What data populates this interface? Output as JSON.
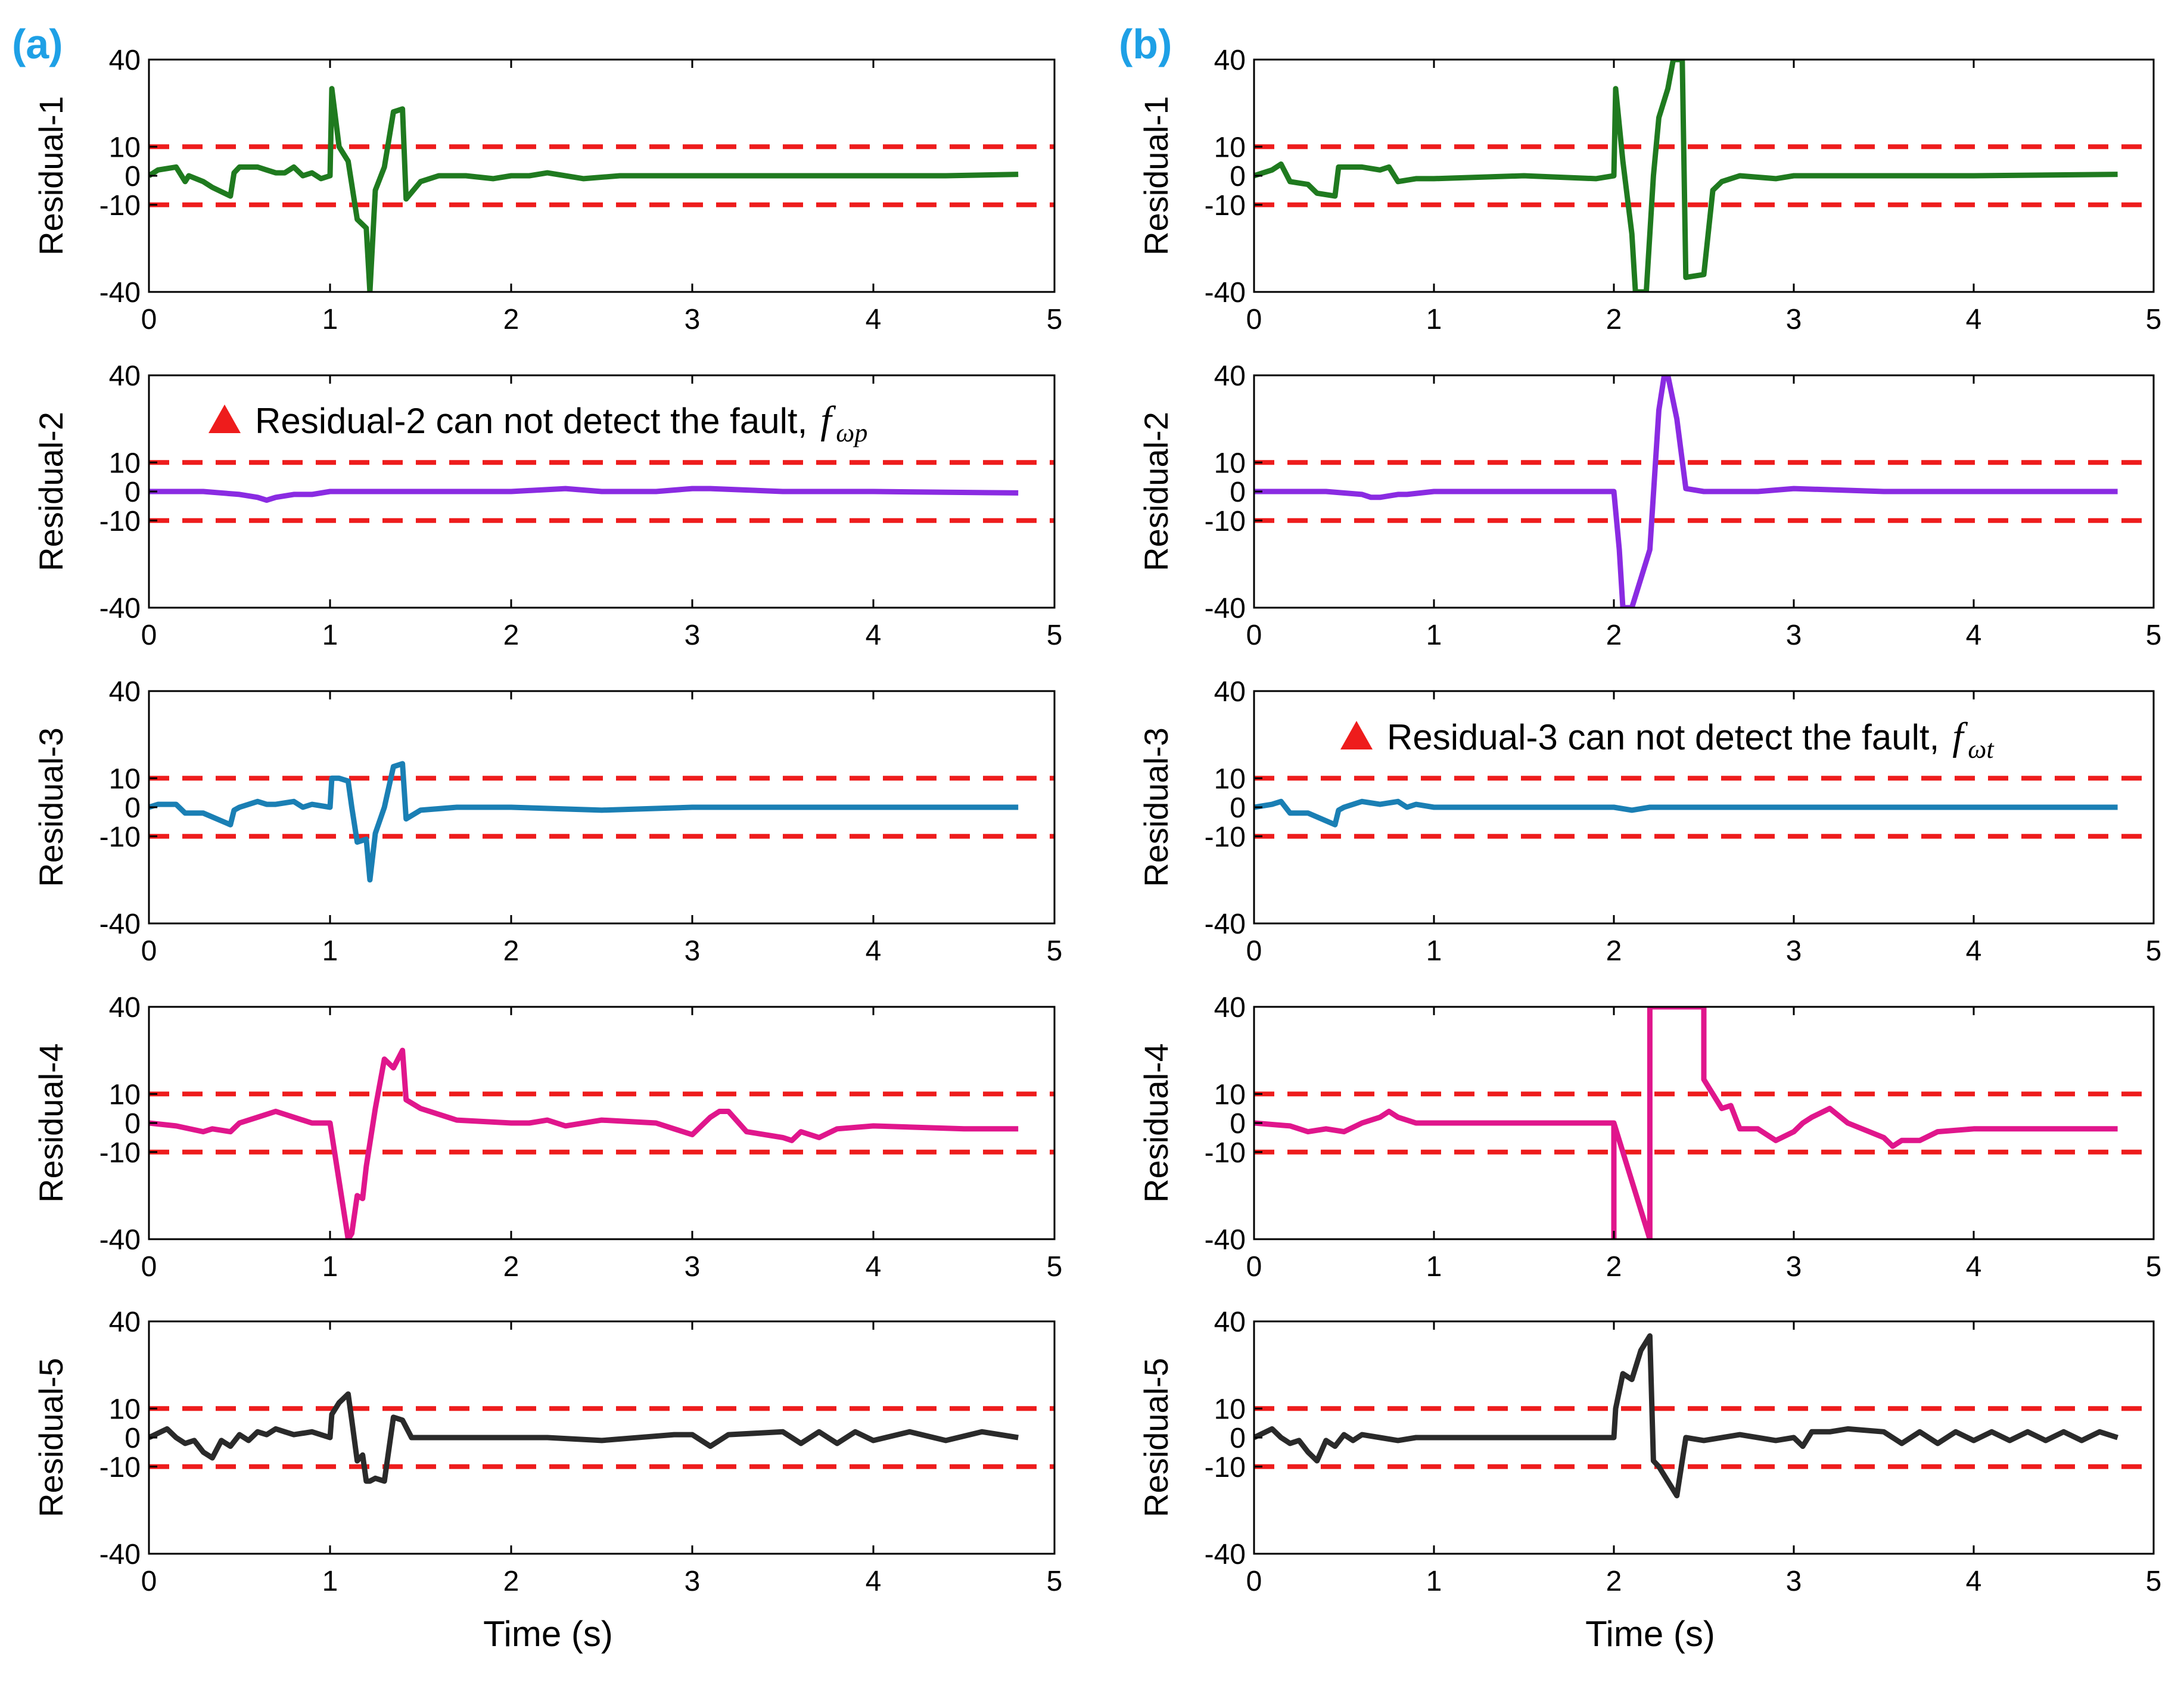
{
  "panels": {
    "a": {
      "label": "(a)"
    },
    "b": {
      "label": "(b)"
    }
  },
  "annotations": {
    "a_residual2": {
      "text": "Residual-2 can not detect the fault,",
      "math": "f",
      "sub": "ωp",
      "marker": "triangle-up-icon"
    },
    "b_residual3": {
      "text": "Residual-3 can not detect the fault,",
      "math": "f",
      "sub": "ωt",
      "marker": "triangle-up-icon"
    }
  },
  "colors": {
    "threshold": "#ee1c1c",
    "r1": "#1f7a1f",
    "r2": "#8a2be2",
    "r3": "#1a7fb4",
    "r4": "#e0168c",
    "r5": "#2a2a2a",
    "panel_label": "#1ea0e6"
  },
  "chart_data": [
    {
      "id": "a1",
      "panel": "a",
      "type": "line",
      "ylabel": "Residual-1",
      "xlabel": "",
      "xlim": [
        0,
        5
      ],
      "ylim": [
        -40,
        40
      ],
      "xticks": [
        "0",
        "1",
        "2",
        "3",
        "4",
        "5"
      ],
      "yticks": [
        "-40",
        "-10",
        "0",
        "10",
        "40"
      ],
      "thresholds": [
        10,
        -10
      ],
      "color": "r1",
      "x": [
        0,
        0.05,
        0.15,
        0.2,
        0.22,
        0.3,
        0.35,
        0.45,
        0.47,
        0.5,
        0.6,
        0.65,
        0.7,
        0.75,
        0.8,
        0.85,
        0.9,
        0.95,
        1.0,
        1.01,
        1.05,
        1.1,
        1.15,
        1.2,
        1.22,
        1.25,
        1.3,
        1.35,
        1.4,
        1.42,
        1.5,
        1.6,
        1.75,
        1.9,
        2.0,
        2.05,
        2.1,
        2.2,
        2.4,
        2.6,
        2.8,
        3.0,
        3.3,
        3.6,
        4.0,
        4.4,
        4.8
      ],
      "y": [
        0,
        2,
        3,
        -2,
        0,
        -2,
        -4,
        -7,
        1,
        3,
        3,
        2,
        1,
        1,
        3,
        0,
        1,
        -1,
        0,
        30,
        10,
        5,
        -15,
        -18,
        -40,
        -5,
        3,
        22,
        23,
        -8,
        -2,
        0,
        0,
        -1,
        0,
        0,
        0,
        1,
        -1,
        0,
        0,
        0,
        0,
        0,
        0,
        0,
        0.5
      ]
    },
    {
      "id": "a2",
      "panel": "a",
      "type": "line",
      "ylabel": "Residual-2",
      "xlabel": "",
      "xlim": [
        0,
        5
      ],
      "ylim": [
        -40,
        40
      ],
      "xticks": [
        "0",
        "1",
        "2",
        "3",
        "4",
        "5"
      ],
      "yticks": [
        "-40",
        "-10",
        "0",
        "10",
        "40"
      ],
      "thresholds": [
        10,
        -10
      ],
      "color": "r2",
      "x": [
        0,
        0.3,
        0.5,
        0.6,
        0.65,
        0.7,
        0.8,
        0.9,
        1.0,
        1.2,
        1.5,
        2.0,
        2.3,
        2.5,
        2.8,
        3.0,
        3.1,
        3.5,
        4.0,
        4.8
      ],
      "y": [
        0,
        0,
        -1,
        -2,
        -3,
        -2,
        -1,
        -1,
        0,
        0,
        0,
        0,
        1,
        0,
        0,
        1,
        1,
        0,
        0,
        -0.5
      ]
    },
    {
      "id": "a3",
      "panel": "a",
      "type": "line",
      "ylabel": "Residual-3",
      "xlabel": "",
      "xlim": [
        0,
        5
      ],
      "ylim": [
        -40,
        40
      ],
      "xticks": [
        "0",
        "1",
        "2",
        "3",
        "4",
        "5"
      ],
      "yticks": [
        "-40",
        "-10",
        "0",
        "10",
        "40"
      ],
      "thresholds": [
        10,
        -10
      ],
      "color": "r3",
      "x": [
        0,
        0.05,
        0.15,
        0.2,
        0.3,
        0.45,
        0.47,
        0.5,
        0.6,
        0.65,
        0.7,
        0.8,
        0.85,
        0.9,
        1.0,
        1.01,
        1.05,
        1.1,
        1.12,
        1.15,
        1.2,
        1.22,
        1.25,
        1.3,
        1.35,
        1.4,
        1.42,
        1.5,
        1.7,
        2.0,
        2.5,
        3.0,
        3.5,
        4.0,
        4.5,
        4.8
      ],
      "y": [
        0,
        1,
        1,
        -2,
        -2,
        -6,
        -1,
        0,
        2,
        1,
        1,
        2,
        0,
        1,
        0,
        10,
        10,
        9,
        0,
        -12,
        -11,
        -25,
        -9,
        0,
        14,
        15,
        -4,
        -1,
        0,
        0,
        -1,
        0,
        0,
        0,
        0,
        0
      ]
    },
    {
      "id": "a4",
      "panel": "a",
      "type": "line",
      "ylabel": "Residual-4",
      "xlabel": "",
      "xlim": [
        0,
        5
      ],
      "ylim": [
        -40,
        40
      ],
      "xticks": [
        "0",
        "1",
        "2",
        "3",
        "4",
        "5"
      ],
      "yticks": [
        "-40",
        "-10",
        "0",
        "10",
        "40"
      ],
      "thresholds": [
        10,
        -10
      ],
      "color": "r4",
      "x": [
        0,
        0.15,
        0.3,
        0.35,
        0.45,
        0.5,
        0.6,
        0.7,
        0.75,
        0.8,
        0.9,
        1.0,
        1.05,
        1.1,
        1.12,
        1.15,
        1.18,
        1.2,
        1.25,
        1.3,
        1.35,
        1.4,
        1.42,
        1.5,
        1.7,
        2.0,
        2.1,
        2.2,
        2.3,
        2.5,
        2.8,
        2.9,
        3.0,
        3.1,
        3.15,
        3.2,
        3.3,
        3.5,
        3.55,
        3.6,
        3.7,
        3.8,
        4.0,
        4.5,
        4.8
      ],
      "y": [
        0,
        -1,
        -3,
        -2,
        -3,
        0,
        2,
        4,
        3,
        2,
        0,
        0,
        -20,
        -40,
        -38,
        -25,
        -26,
        -15,
        5,
        22,
        19,
        25,
        8,
        5,
        1,
        0,
        0,
        1,
        -1,
        1,
        0,
        -2,
        -4,
        2,
        4,
        4,
        -3,
        -5,
        -6,
        -3,
        -5,
        -2,
        -1,
        -2,
        -2
      ]
    },
    {
      "id": "a5",
      "panel": "a",
      "type": "line",
      "ylabel": "Residual-5",
      "xlabel": "Time (s)",
      "xlim": [
        0,
        5
      ],
      "ylim": [
        -40,
        40
      ],
      "xticks": [
        "0",
        "1",
        "2",
        "3",
        "4",
        "5"
      ],
      "yticks": [
        "-40",
        "-10",
        "0",
        "10",
        "40"
      ],
      "thresholds": [
        10,
        -10
      ],
      "color": "r5",
      "x": [
        0,
        0.1,
        0.15,
        0.2,
        0.25,
        0.3,
        0.35,
        0.4,
        0.45,
        0.5,
        0.55,
        0.6,
        0.65,
        0.7,
        0.75,
        0.8,
        0.9,
        1.0,
        1.01,
        1.05,
        1.1,
        1.12,
        1.15,
        1.18,
        1.2,
        1.22,
        1.25,
        1.3,
        1.35,
        1.4,
        1.45,
        1.5,
        1.7,
        2.0,
        2.2,
        2.5,
        2.9,
        3.0,
        3.1,
        3.2,
        3.5,
        3.6,
        3.7,
        3.8,
        3.9,
        4.0,
        4.2,
        4.4,
        4.6,
        4.8
      ],
      "y": [
        0,
        3,
        0,
        -2,
        -1,
        -5,
        -7,
        -1,
        -3,
        1,
        -1,
        2,
        1,
        3,
        2,
        1,
        2,
        0,
        8,
        12,
        15,
        6,
        -8,
        -6,
        -15,
        -15,
        -14,
        -15,
        7,
        6,
        0,
        0,
        0,
        0,
        0,
        -1,
        1,
        1,
        -3,
        1,
        2,
        -2,
        2,
        -2,
        2,
        -1,
        2,
        -1,
        2,
        0
      ]
    },
    {
      "id": "b1",
      "panel": "b",
      "type": "line",
      "ylabel": "Residual-1",
      "xlabel": "",
      "xlim": [
        0,
        5
      ],
      "ylim": [
        -40,
        40
      ],
      "xticks": [
        "0",
        "1",
        "2",
        "3",
        "4",
        "5"
      ],
      "yticks": [
        "-40",
        "-10",
        "0",
        "10",
        "40"
      ],
      "thresholds": [
        10,
        -10
      ],
      "color": "r1",
      "x": [
        0,
        0.1,
        0.15,
        0.2,
        0.3,
        0.35,
        0.45,
        0.47,
        0.6,
        0.7,
        0.75,
        0.8,
        0.9,
        1.0,
        1.5,
        1.9,
        2.0,
        2.01,
        2.05,
        2.1,
        2.12,
        2.18,
        2.2,
        2.22,
        2.25,
        2.3,
        2.33,
        2.38,
        2.4,
        2.5,
        2.55,
        2.6,
        2.7,
        2.9,
        3.0,
        3.5,
        4.0,
        4.8
      ],
      "y": [
        0,
        2,
        4,
        -2,
        -3,
        -6,
        -7,
        3,
        3,
        2,
        3,
        -2,
        -1,
        -1,
        0,
        -1,
        0,
        30,
        5,
        -20,
        -40,
        -40,
        -20,
        0,
        20,
        30,
        40,
        40,
        -35,
        -34,
        -5,
        -2,
        0,
        -1,
        0,
        0,
        0,
        0.5
      ]
    },
    {
      "id": "b2",
      "panel": "b",
      "type": "line",
      "ylabel": "Residual-2",
      "xlabel": "",
      "xlim": [
        0,
        5
      ],
      "ylim": [
        -40,
        40
      ],
      "xticks": [
        "0",
        "1",
        "2",
        "3",
        "4",
        "5"
      ],
      "yticks": [
        "-40",
        "-10",
        "0",
        "10",
        "40"
      ],
      "thresholds": [
        10,
        -10
      ],
      "color": "r2",
      "x": [
        0,
        0.4,
        0.6,
        0.65,
        0.7,
        0.8,
        0.85,
        1.0,
        1.5,
        2.0,
        2.0,
        2.03,
        2.05,
        2.1,
        2.15,
        2.2,
        2.25,
        2.28,
        2.3,
        2.35,
        2.4,
        2.5,
        2.8,
        3.0,
        3.5,
        4.0,
        4.8
      ],
      "y": [
        0,
        0,
        -1,
        -2,
        -2,
        -1,
        -1,
        0,
        0,
        0,
        0,
        -20,
        -40,
        -40,
        -30,
        -20,
        28,
        40,
        40,
        25,
        1,
        0,
        0,
        1,
        0,
        0,
        0
      ]
    },
    {
      "id": "b3",
      "panel": "b",
      "type": "line",
      "ylabel": "Residual-3",
      "xlabel": "",
      "xlim": [
        0,
        5
      ],
      "ylim": [
        -40,
        40
      ],
      "xticks": [
        "0",
        "1",
        "2",
        "3",
        "4",
        "5"
      ],
      "yticks": [
        "-40",
        "-10",
        "0",
        "10",
        "40"
      ],
      "thresholds": [
        10,
        -10
      ],
      "color": "r3",
      "x": [
        0,
        0.1,
        0.15,
        0.2,
        0.3,
        0.45,
        0.47,
        0.5,
        0.6,
        0.7,
        0.8,
        0.85,
        0.9,
        1.0,
        1.5,
        2.0,
        2.1,
        2.2,
        2.5,
        2.8,
        3.0,
        3.5,
        4.0,
        4.5,
        4.8
      ],
      "y": [
        0,
        1,
        2,
        -2,
        -2,
        -6,
        -1,
        0,
        2,
        1,
        2,
        0,
        1,
        0,
        0,
        0,
        -1,
        0,
        0,
        0,
        0,
        0,
        0,
        0,
        0
      ]
    },
    {
      "id": "b4",
      "panel": "b",
      "type": "line",
      "ylabel": "Residual-4",
      "xlabel": "",
      "xlim": [
        0,
        5
      ],
      "ylim": [
        -40,
        40
      ],
      "xticks": [
        "0",
        "1",
        "2",
        "3",
        "4",
        "5"
      ],
      "yticks": [
        "-40",
        "-10",
        "0",
        "10",
        "40"
      ],
      "thresholds": [
        10,
        -10
      ],
      "color": "r4",
      "x": [
        0,
        0.2,
        0.3,
        0.4,
        0.5,
        0.6,
        0.7,
        0.75,
        0.8,
        0.9,
        1.0,
        1.5,
        2.0,
        2.0,
        2.0,
        2.2,
        2.2,
        2.5,
        2.5,
        2.55,
        2.6,
        2.65,
        2.7,
        2.8,
        2.9,
        3.0,
        3.05,
        3.1,
        3.2,
        3.3,
        3.5,
        3.55,
        3.6,
        3.7,
        3.8,
        4.0,
        4.5,
        4.8
      ],
      "y": [
        0,
        -1,
        -3,
        -2,
        -3,
        0,
        2,
        4,
        2,
        0,
        0,
        0,
        0,
        -40,
        0,
        -40,
        40,
        40,
        15,
        10,
        5,
        6,
        -2,
        -2,
        -6,
        -3,
        0,
        2,
        5,
        0,
        -5,
        -8,
        -6,
        -6,
        -3,
        -2,
        -2,
        -2
      ]
    },
    {
      "id": "b5",
      "panel": "b",
      "type": "line",
      "ylabel": "Residual-5",
      "xlabel": "Time (s)",
      "xlim": [
        0,
        5
      ],
      "ylim": [
        -40,
        40
      ],
      "xticks": [
        "0",
        "1",
        "2",
        "3",
        "4",
        "5"
      ],
      "yticks": [
        "-40",
        "-10",
        "0",
        "10",
        "40"
      ],
      "thresholds": [
        10,
        -10
      ],
      "color": "r5",
      "x": [
        0,
        0.1,
        0.15,
        0.2,
        0.25,
        0.3,
        0.35,
        0.4,
        0.45,
        0.5,
        0.55,
        0.6,
        0.7,
        0.8,
        0.9,
        1.0,
        1.5,
        2.0,
        2.01,
        2.05,
        2.1,
        2.15,
        2.2,
        2.22,
        2.25,
        2.3,
        2.35,
        2.4,
        2.5,
        2.7,
        2.9,
        3.0,
        3.05,
        3.1,
        3.2,
        3.3,
        3.5,
        3.6,
        3.7,
        3.8,
        3.9,
        4.0,
        4.1,
        4.2,
        4.3,
        4.4,
        4.5,
        4.6,
        4.7,
        4.8
      ],
      "y": [
        0,
        3,
        0,
        -2,
        -1,
        -5,
        -8,
        -1,
        -3,
        1,
        -1,
        1,
        0,
        -1,
        0,
        0,
        0,
        0,
        10,
        22,
        20,
        30,
        35,
        -8,
        -10,
        -15,
        -20,
        0,
        -1,
        1,
        -1,
        0,
        -3,
        2,
        2,
        3,
        2,
        -2,
        2,
        -2,
        2,
        -1,
        2,
        -1,
        2,
        -1,
        2,
        -1,
        2,
        0
      ]
    }
  ]
}
